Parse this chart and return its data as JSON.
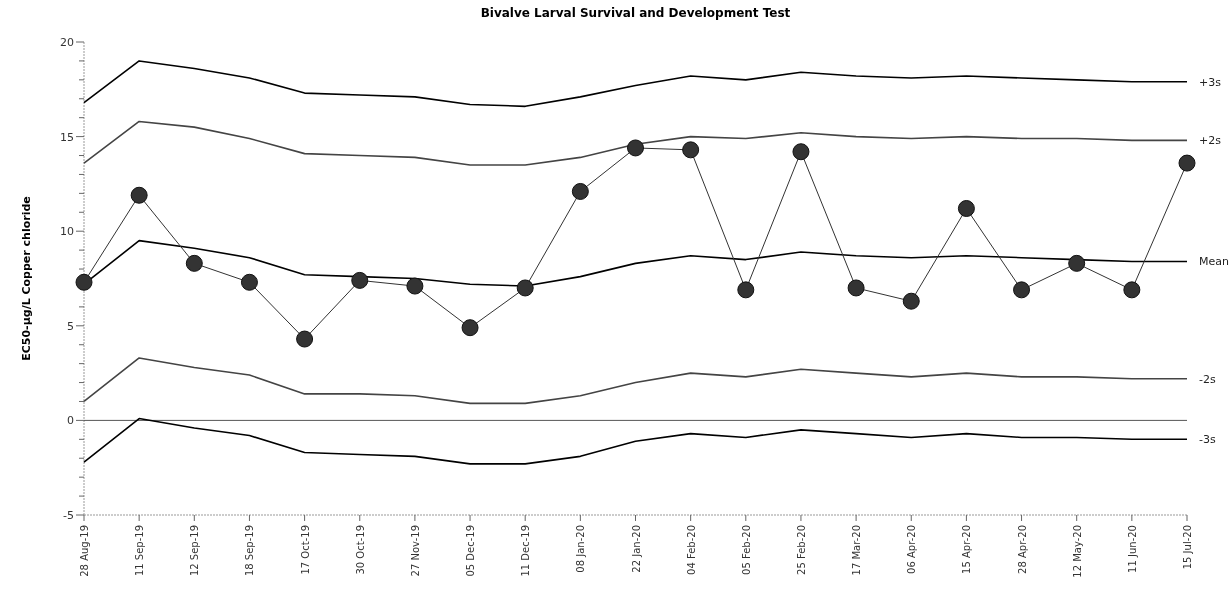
{
  "chart_data": {
    "type": "line",
    "title": "Bivalve Larval Survival and Development Test",
    "ylabel": "EC50-µg/L Copper chloride",
    "categories": [
      "28 Aug-19",
      "11 Sep-19",
      "12 Sep-19",
      "18 Sep-19",
      "17 Oct-19",
      "30 Oct-19",
      "27 Nov-19",
      "05 Dec-19",
      "11 Dec-19",
      "08 Jan-20",
      "22 Jan-20",
      "04 Feb-20",
      "05 Feb-20",
      "25 Feb-20",
      "17 Mar-20",
      "06 Apr-20",
      "15 Apr-20",
      "28 Apr-20",
      "12 May-20",
      "11 Jun-20",
      "15 Jul-20"
    ],
    "series": [
      {
        "name": "+3s",
        "color": "#000000",
        "marker": "none",
        "values": [
          16.8,
          19.0,
          18.6,
          18.1,
          17.3,
          17.2,
          17.1,
          16.7,
          16.6,
          17.1,
          17.7,
          18.2,
          18.0,
          18.4,
          18.2,
          18.1,
          18.2,
          18.1,
          18.0,
          17.9,
          17.9
        ]
      },
      {
        "name": "+2s",
        "color": "#444444",
        "marker": "none",
        "values": [
          13.6,
          15.8,
          15.5,
          14.9,
          14.1,
          14.0,
          13.9,
          13.5,
          13.5,
          13.9,
          14.6,
          15.0,
          14.9,
          15.2,
          15.0,
          14.9,
          15.0,
          14.9,
          14.9,
          14.8,
          14.8
        ]
      },
      {
        "name": "Mean",
        "color": "#000000",
        "marker": "none",
        "values": [
          7.2,
          9.5,
          9.1,
          8.6,
          7.7,
          7.6,
          7.5,
          7.2,
          7.1,
          7.6,
          8.3,
          8.7,
          8.5,
          8.9,
          8.7,
          8.6,
          8.7,
          8.6,
          8.5,
          8.4,
          8.4
        ]
      },
      {
        "name": "-2s",
        "color": "#444444",
        "marker": "none",
        "values": [
          1.0,
          3.3,
          2.8,
          2.4,
          1.4,
          1.4,
          1.3,
          0.9,
          0.9,
          1.3,
          2.0,
          2.5,
          2.3,
          2.7,
          2.5,
          2.3,
          2.5,
          2.3,
          2.3,
          2.2,
          2.2
        ]
      },
      {
        "name": "-3s",
        "color": "#000000",
        "marker": "none",
        "values": [
          -2.2,
          0.1,
          -0.4,
          -0.8,
          -1.7,
          -1.8,
          -1.9,
          -2.3,
          -2.3,
          -1.9,
          -1.1,
          -0.7,
          -0.9,
          -0.5,
          -0.7,
          -0.9,
          -0.7,
          -0.9,
          -0.9,
          -1.0,
          -1.0
        ]
      },
      {
        "color": "#333333",
        "marker": "circle",
        "values": [
          7.3,
          11.9,
          8.3,
          7.3,
          4.3,
          7.4,
          7.1,
          4.9,
          7.0,
          12.1,
          14.4,
          14.3,
          6.9,
          14.2,
          7.0,
          6.3,
          11.2,
          6.9,
          8.3,
          6.9,
          13.6
        ]
      }
    ],
    "ylim": [
      -5,
      20
    ],
    "yticks": [
      -5,
      {
        "value": -4,
        "label": null
      },
      {
        "value": -3,
        "label": null
      },
      {
        "value": -2,
        "label": null
      },
      {
        "value": -1,
        "label": null
      },
      0,
      {
        "value": 1,
        "label": null
      },
      {
        "value": 2,
        "label": null
      },
      {
        "value": 3,
        "label": null
      },
      {
        "value": 4,
        "label": null
      },
      5,
      {
        "value": 6,
        "label": null
      },
      {
        "value": 7,
        "label": null
      },
      {
        "value": 8,
        "label": null
      },
      {
        "value": 9,
        "label": null
      },
      10,
      {
        "value": 11,
        "label": null
      },
      {
        "value": 12,
        "label": null
      },
      {
        "value": 13,
        "label": null
      },
      {
        "value": 14,
        "label": null
      },
      15,
      {
        "value": 16,
        "label": null
      },
      {
        "value": 17,
        "label": null
      },
      {
        "value": 18,
        "label": null
      },
      {
        "value": 19,
        "label": null
      },
      20
    ],
    "ref_lines": [
      {
        "axis": "y",
        "value": 0,
        "color": "#555555"
      }
    ],
    "grid": false,
    "legend": false
  }
}
